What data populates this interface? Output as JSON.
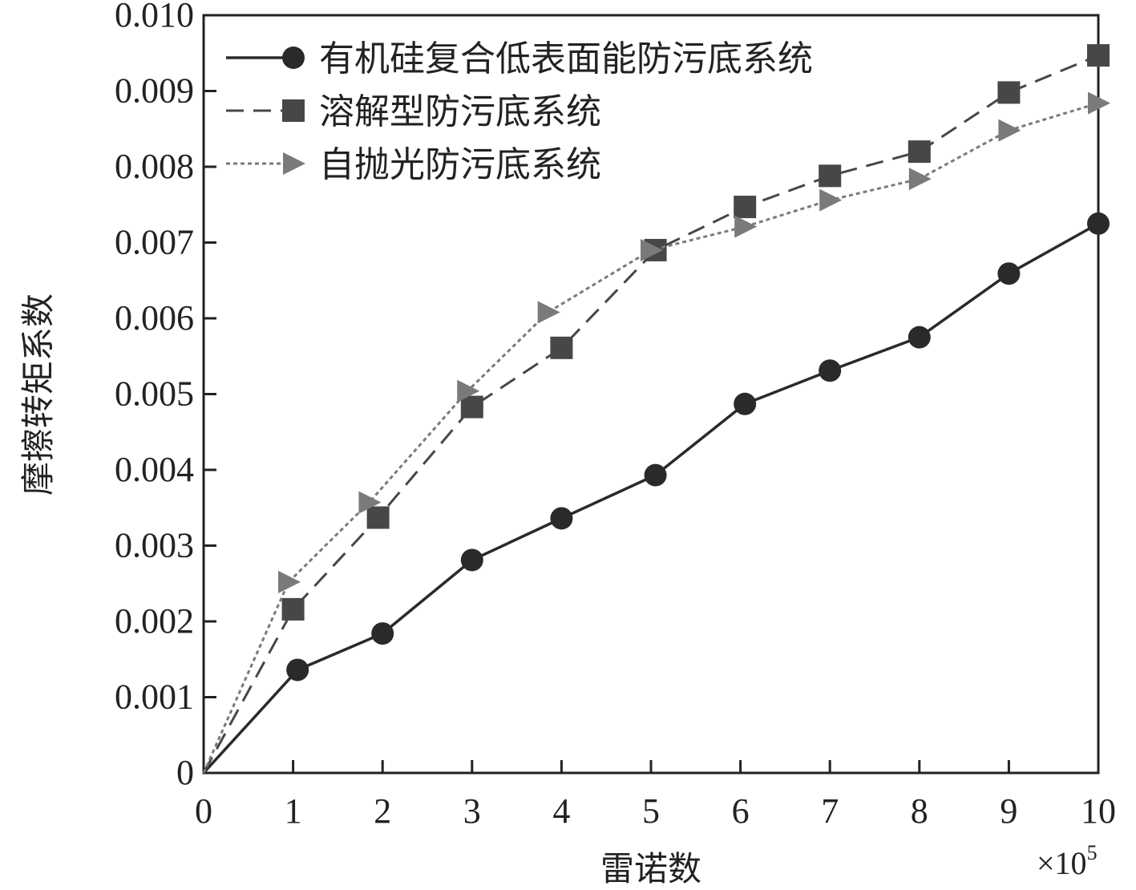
{
  "chart_data": {
    "type": "line",
    "xlabel": "雷诺数",
    "ylabel": "摩擦转矩系数",
    "x_multiplier": {
      "base": "×10",
      "exponent": "5"
    },
    "xlim": [
      0,
      10
    ],
    "ylim": [
      0,
      0.01
    ],
    "x_ticks": [
      "0",
      "1",
      "2",
      "3",
      "4",
      "5",
      "6",
      "7",
      "8",
      "9",
      "10"
    ],
    "y_ticks": [
      "0",
      "0.001",
      "0.002",
      "0.003",
      "0.004",
      "0.005",
      "0.006",
      "0.007",
      "0.008",
      "0.009",
      "0.010"
    ],
    "grid": false,
    "legend_position": "top-left",
    "series": [
      {
        "name": "有机硅复合低表面能防污底系统",
        "marker": "circle",
        "line_style": "solid",
        "color": "#2a2a2a",
        "x": [
          0,
          1.05,
          2.0,
          3.0,
          4.0,
          5.05,
          6.05,
          7.0,
          8.0,
          9.0,
          10.0
        ],
        "values": [
          0,
          0.00136,
          0.00184,
          0.00281,
          0.00336,
          0.00393,
          0.00487,
          0.00531,
          0.00575,
          0.00659,
          0.00725
        ]
      },
      {
        "name": "溶解型防污底系统",
        "marker": "square",
        "line_style": "dashed",
        "color": "#474747",
        "x": [
          0,
          1.0,
          1.95,
          3.0,
          4.0,
          5.05,
          6.05,
          7.0,
          8.0,
          9.0,
          10.0
        ],
        "values": [
          0,
          0.00216,
          0.00337,
          0.00483,
          0.00561,
          0.0069,
          0.00747,
          0.00788,
          0.0082,
          0.00898,
          0.00947
        ]
      },
      {
        "name": "自抛光防污底系统",
        "marker": "triangle-right",
        "line_style": "dotted",
        "color": "#7a7a7a",
        "x": [
          0,
          0.95,
          1.85,
          2.95,
          3.85,
          5.0,
          6.05,
          7.0,
          8.0,
          9.0,
          10.0
        ],
        "values": [
          0,
          0.00252,
          0.00357,
          0.00504,
          0.00608,
          0.0069,
          0.00721,
          0.00756,
          0.00784,
          0.00848,
          0.00884
        ]
      }
    ]
  }
}
